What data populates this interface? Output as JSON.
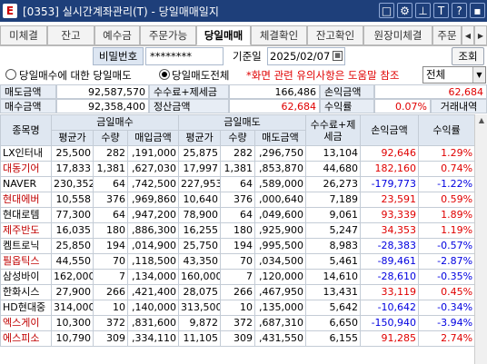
{
  "titlebar": {
    "icon": "E",
    "title": "[0353] 실시간계좌관리(T) - 당일매매일지",
    "icons": [
      "□",
      "⚙",
      "⊥",
      "T",
      "?",
      "▪"
    ]
  },
  "tabs": [
    "미체결",
    "잔고",
    "예수금",
    "주문가능",
    "당일매매",
    "체결확인",
    "잔고확인",
    "원장미체결",
    "주문"
  ],
  "active_tab": 4,
  "account": {
    "pw_label": "비밀번호",
    "pw_value": "********",
    "date_label": "기준일",
    "date_value": "2025/02/07",
    "query_button": "조회"
  },
  "options": {
    "radio1": "당일매수에 대한 당일매도",
    "radio2": "당일매도전체",
    "warning": "*화면 관련 유의사항은 도움말 참조",
    "combo_value": "전체"
  },
  "summary": {
    "row1": [
      {
        "label": "매도금액",
        "value": "92,587,570"
      },
      {
        "label": "수수료+제세금",
        "value": "166,486"
      },
      {
        "label": "손익금액",
        "value": "62,684"
      }
    ],
    "row2": [
      {
        "label": "매수금액",
        "value": "92,358,400"
      },
      {
        "label": "정산금액",
        "value": "62,684"
      },
      {
        "label": "수익률",
        "value": "0.07%"
      },
      {
        "label": "거래내역",
        "value": ""
      }
    ]
  },
  "grid": {
    "headers": {
      "name": "종목명",
      "buy_group": "금일매수",
      "sell_group": "금일매도",
      "fee": "수수료+제세금",
      "pnl": "손익금액",
      "ret": "수익률",
      "avg": "평균가",
      "qty": "수량",
      "buy_amt": "매입금액",
      "sell_amt": "매도금액"
    },
    "rows": [
      {
        "name": "LX인터내",
        "color": "#000000",
        "b_avg": "25,500",
        "b_qty": "282",
        "b_amt": ",191,000",
        "s_avg": "25,875",
        "s_qty": "282",
        "s_amt": ",296,750",
        "fee": "13,104",
        "pnl": "92,646",
        "ret": "1.29%",
        "sign": "red"
      },
      {
        "name": "대동기어",
        "color": "#c00000",
        "b_avg": "17,833",
        "b_qty": "1,381",
        "b_amt": ",627,030",
        "s_avg": "17,997",
        "s_qty": "1,381",
        "s_amt": ",853,870",
        "fee": "44,680",
        "pnl": "182,160",
        "ret": "0.74%",
        "sign": "red"
      },
      {
        "name": "NAVER",
        "color": "#000000",
        "b_avg": "230,352",
        "b_qty": "64",
        "b_amt": ",742,500",
        "s_avg": "227,953",
        "s_qty": "64",
        "s_amt": ",589,000",
        "fee": "26,273",
        "pnl": "-179,773",
        "ret": "-1.22%",
        "sign": "blue"
      },
      {
        "name": "현대에버",
        "color": "#c00000",
        "b_avg": "10,558",
        "b_qty": "376",
        "b_amt": ",969,860",
        "s_avg": "10,640",
        "s_qty": "376",
        "s_amt": ",000,640",
        "fee": "7,189",
        "pnl": "23,591",
        "ret": "0.59%",
        "sign": "red"
      },
      {
        "name": "현대로템",
        "color": "#000000",
        "b_avg": "77,300",
        "b_qty": "64",
        "b_amt": ",947,200",
        "s_avg": "78,900",
        "s_qty": "64",
        "s_amt": ",049,600",
        "fee": "9,061",
        "pnl": "93,339",
        "ret": "1.89%",
        "sign": "red"
      },
      {
        "name": "제주반도",
        "color": "#c00000",
        "b_avg": "16,035",
        "b_qty": "180",
        "b_amt": ",886,300",
        "s_avg": "16,255",
        "s_qty": "180",
        "s_amt": ",925,900",
        "fee": "5,247",
        "pnl": "34,353",
        "ret": "1.19%",
        "sign": "red"
      },
      {
        "name": "켐트로닉",
        "color": "#000000",
        "b_avg": "25,850",
        "b_qty": "194",
        "b_amt": ",014,900",
        "s_avg": "25,750",
        "s_qty": "194",
        "s_amt": ",995,500",
        "fee": "8,983",
        "pnl": "-28,383",
        "ret": "-0.57%",
        "sign": "blue"
      },
      {
        "name": "필옵틱스",
        "color": "#c00000",
        "b_avg": "44,550",
        "b_qty": "70",
        "b_amt": ",118,500",
        "s_avg": "43,350",
        "s_qty": "70",
        "s_amt": ",034,500",
        "fee": "5,461",
        "pnl": "-89,461",
        "ret": "-2.87%",
        "sign": "blue"
      },
      {
        "name": "삼성바이",
        "color": "#000000",
        "b_avg": "162,000",
        "b_qty": "7",
        "b_amt": ",134,000",
        "s_avg": "160,000",
        "s_qty": "7",
        "s_amt": ",120,000",
        "fee": "14,610",
        "pnl": "-28,610",
        "ret": "-0.35%",
        "sign": "blue"
      },
      {
        "name": "한화시스",
        "color": "#000000",
        "b_avg": "27,900",
        "b_qty": "266",
        "b_amt": ",421,400",
        "s_avg": "28,075",
        "s_qty": "266",
        "s_amt": ",467,950",
        "fee": "13,431",
        "pnl": "33,119",
        "ret": "0.45%",
        "sign": "red"
      },
      {
        "name": "HD현대중",
        "color": "#000000",
        "b_avg": "314,000",
        "b_qty": "10",
        "b_amt": ",140,000",
        "s_avg": "313,500",
        "s_qty": "10",
        "s_amt": ",135,000",
        "fee": "5,642",
        "pnl": "-10,642",
        "ret": "-0.34%",
        "sign": "blue"
      },
      {
        "name": "엑스게이",
        "color": "#c00000",
        "b_avg": "10,300",
        "b_qty": "372",
        "b_amt": ",831,600",
        "s_avg": "9,872",
        "s_qty": "372",
        "s_amt": ",687,310",
        "fee": "6,650",
        "pnl": "-150,940",
        "ret": "-3.94%",
        "sign": "blue"
      },
      {
        "name": "에스피소",
        "color": "#c00000",
        "b_avg": "10,790",
        "b_qty": "309",
        "b_amt": ",334,110",
        "s_avg": "11,105",
        "s_qty": "309",
        "s_amt": ",431,550",
        "fee": "6,155",
        "pnl": "91,285",
        "ret": "2.74%",
        "sign": "red"
      }
    ]
  }
}
